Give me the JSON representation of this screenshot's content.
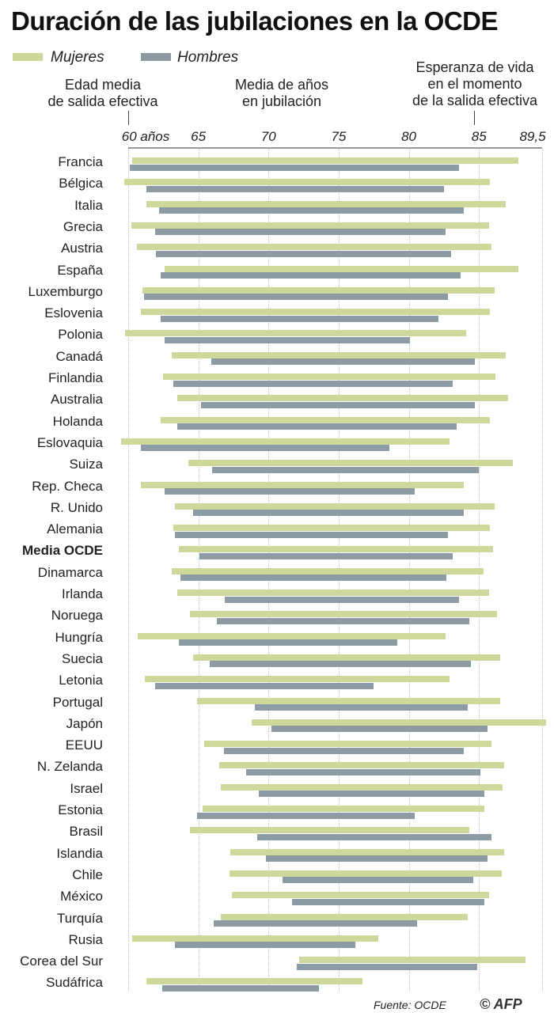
{
  "colors": {
    "women": "#cfd89b",
    "men": "#8d9ba4"
  },
  "chart_data": {
    "type": "bar",
    "subtype": "floating-range-horizontal",
    "title": "Duración de las jubilaciones en la OCDE",
    "legend": [
      "Mujeres",
      "Hombres"
    ],
    "legend_placement": "top-left",
    "header_labels": {
      "start": "Edad media de salida efectiva",
      "middle": "Media de años en jubilación",
      "end": "Esperanza de vida en el momento de la salida efectiva"
    },
    "header_lines": {
      "start": [
        "Edad media",
        "de salida efectiva"
      ],
      "middle": [
        "Media de años",
        "en jubilación"
      ],
      "end": [
        "Esperanza de vida",
        "en el momento",
        "de la salida efectiva"
      ]
    },
    "xlim": [
      60,
      89.5
    ],
    "xticks": [
      60,
      65,
      70,
      75,
      80,
      85,
      89.5
    ],
    "xtick_labels": [
      "60 años",
      "65",
      "70",
      "75",
      "80",
      "85",
      "89,5"
    ],
    "grid": true,
    "highlight": "Media OCDE",
    "categories": [
      "Francia",
      "Bélgica",
      "Italia",
      "Grecia",
      "Austria",
      "España",
      "Luxemburgo",
      "Eslovenia",
      "Polonia",
      "Canadá",
      "Finlandia",
      "Australia",
      "Holanda",
      "Eslovaquia",
      "Suiza",
      "Rep. Checa",
      "R. Unido",
      "Alemania",
      "Media OCDE",
      "Dinamarca",
      "Irlanda",
      "Noruega",
      "Hungría",
      "Suecia",
      "Letonia",
      "Portugal",
      "Japón",
      "EEUU",
      "N. Zelanda",
      "Israel",
      "Estonia",
      "Brasil",
      "Islandia",
      "Chile",
      "México",
      "Turquía",
      "Rusia",
      "Corea del Sur",
      "Sudáfrica"
    ],
    "series": [
      {
        "name": "Mujeres",
        "start": [
          60.3,
          59.7,
          61.3,
          60.2,
          60.6,
          62.6,
          61.0,
          60.9,
          59.8,
          63.1,
          62.5,
          63.5,
          62.3,
          59.5,
          64.3,
          60.9,
          63.3,
          63.2,
          63.6,
          63.1,
          63.5,
          64.4,
          60.7,
          64.6,
          61.2,
          64.9,
          68.8,
          65.4,
          66.5,
          66.6,
          65.3,
          64.4,
          67.3,
          67.2,
          67.4,
          66.6,
          60.3,
          72.2,
          61.3
        ],
        "end": [
          87.8,
          85.8,
          86.9,
          85.7,
          85.9,
          87.8,
          86.1,
          85.8,
          84.1,
          86.9,
          86.2,
          87.1,
          85.8,
          82.9,
          87.4,
          83.9,
          86.1,
          85.8,
          86.0,
          85.3,
          85.7,
          86.3,
          82.6,
          86.5,
          82.9,
          86.5,
          89.8,
          85.9,
          86.8,
          86.7,
          85.4,
          84.3,
          86.8,
          86.6,
          85.7,
          84.2,
          77.8,
          88.3,
          76.7
        ]
      },
      {
        "name": "Hombres",
        "start": [
          60.1,
          61.3,
          62.2,
          61.9,
          62.0,
          62.3,
          61.1,
          62.3,
          62.6,
          65.9,
          63.2,
          65.2,
          63.5,
          60.9,
          66.0,
          62.6,
          64.6,
          63.3,
          65.1,
          63.7,
          66.9,
          66.3,
          63.6,
          65.8,
          61.9,
          69.0,
          70.2,
          66.8,
          68.4,
          69.3,
          64.9,
          69.2,
          69.8,
          71.0,
          71.7,
          66.1,
          63.3,
          72.0,
          62.4
        ],
        "end": [
          83.6,
          82.5,
          83.9,
          82.6,
          83.0,
          83.7,
          82.8,
          82.1,
          80.1,
          84.7,
          83.1,
          84.7,
          83.4,
          78.6,
          85.0,
          80.4,
          83.9,
          82.8,
          83.1,
          82.7,
          83.6,
          84.3,
          79.2,
          84.4,
          77.5,
          84.2,
          85.6,
          83.9,
          85.1,
          85.4,
          80.4,
          85.9,
          85.6,
          84.6,
          85.4,
          80.6,
          76.2,
          84.9,
          73.6
        ]
      }
    ]
  },
  "footer": {
    "source": "Fuente: OCDE",
    "logo": "© AFP"
  }
}
